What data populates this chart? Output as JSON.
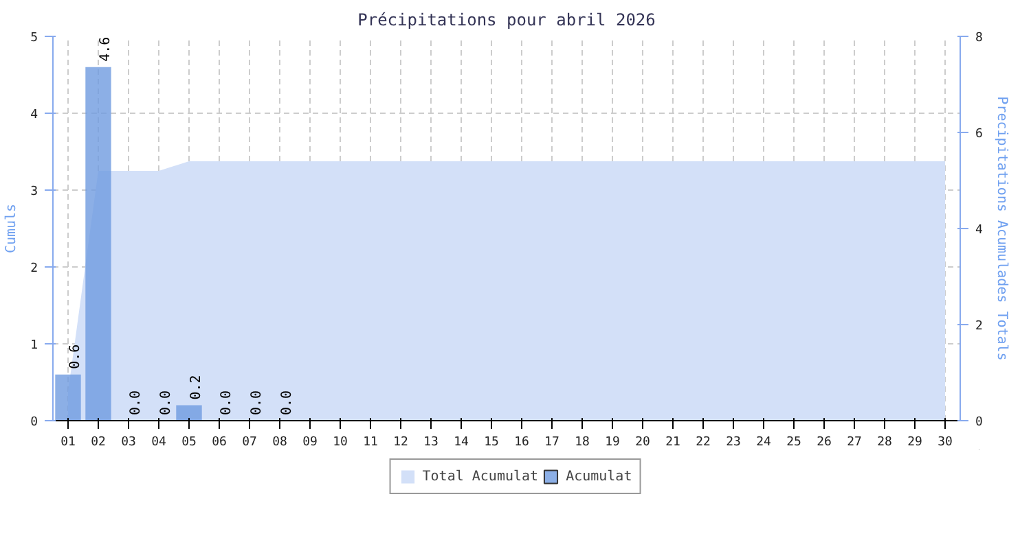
{
  "chart_data": {
    "type": "bar",
    "title": "Précipitations pour abril 2026",
    "ylabel": "Cumuls",
    "y2label": "Precipitations Acumulades Totals",
    "categories": [
      "01",
      "02",
      "03",
      "04",
      "05",
      "06",
      "07",
      "08",
      "09",
      "10",
      "11",
      "12",
      "13",
      "14",
      "15",
      "16",
      "17",
      "18",
      "19",
      "20",
      "21",
      "22",
      "23",
      "24",
      "25",
      "26",
      "27",
      "28",
      "29",
      "30"
    ],
    "series": [
      {
        "name": "Total Acumulat",
        "type": "area",
        "axis": "y2",
        "color": "#d3e0f8",
        "values": [
          0.6,
          5.2,
          5.2,
          5.2,
          5.4,
          5.4,
          5.4,
          5.4,
          5.4,
          5.4,
          5.4,
          5.4,
          5.4,
          5.4,
          5.4,
          5.4,
          5.4,
          5.4,
          5.4,
          5.4,
          5.4,
          5.4,
          5.4,
          5.4,
          5.4,
          5.4,
          5.4,
          5.4,
          5.4,
          5.4
        ]
      },
      {
        "name": "Acumulat",
        "color": "#6f9be0",
        "values": [
          0.6,
          4.6,
          0.0,
          0.0,
          0.2,
          0.0,
          0.0,
          0.0,
          null,
          null,
          null,
          null,
          null,
          null,
          null,
          null,
          null,
          null,
          null,
          null,
          null,
          null,
          null,
          null,
          null,
          null,
          null,
          null,
          null,
          null
        ],
        "value_labels": [
          "0.6",
          "4.6",
          "0.0",
          "0.0",
          "0.2",
          "0.0",
          "0.0",
          "0.0",
          null,
          null,
          null,
          null,
          null,
          null,
          null,
          null,
          null,
          null,
          null,
          null,
          null,
          null,
          null,
          null,
          null,
          null,
          null,
          null,
          null,
          null
        ]
      }
    ],
    "ylim": [
      0,
      5
    ],
    "yticks": [
      0,
      1,
      2,
      3,
      4,
      5
    ],
    "y2lim": [
      0,
      8
    ],
    "y2ticks": [
      0,
      2,
      4,
      6,
      8
    ],
    "grid": true,
    "legend": "bottom"
  }
}
